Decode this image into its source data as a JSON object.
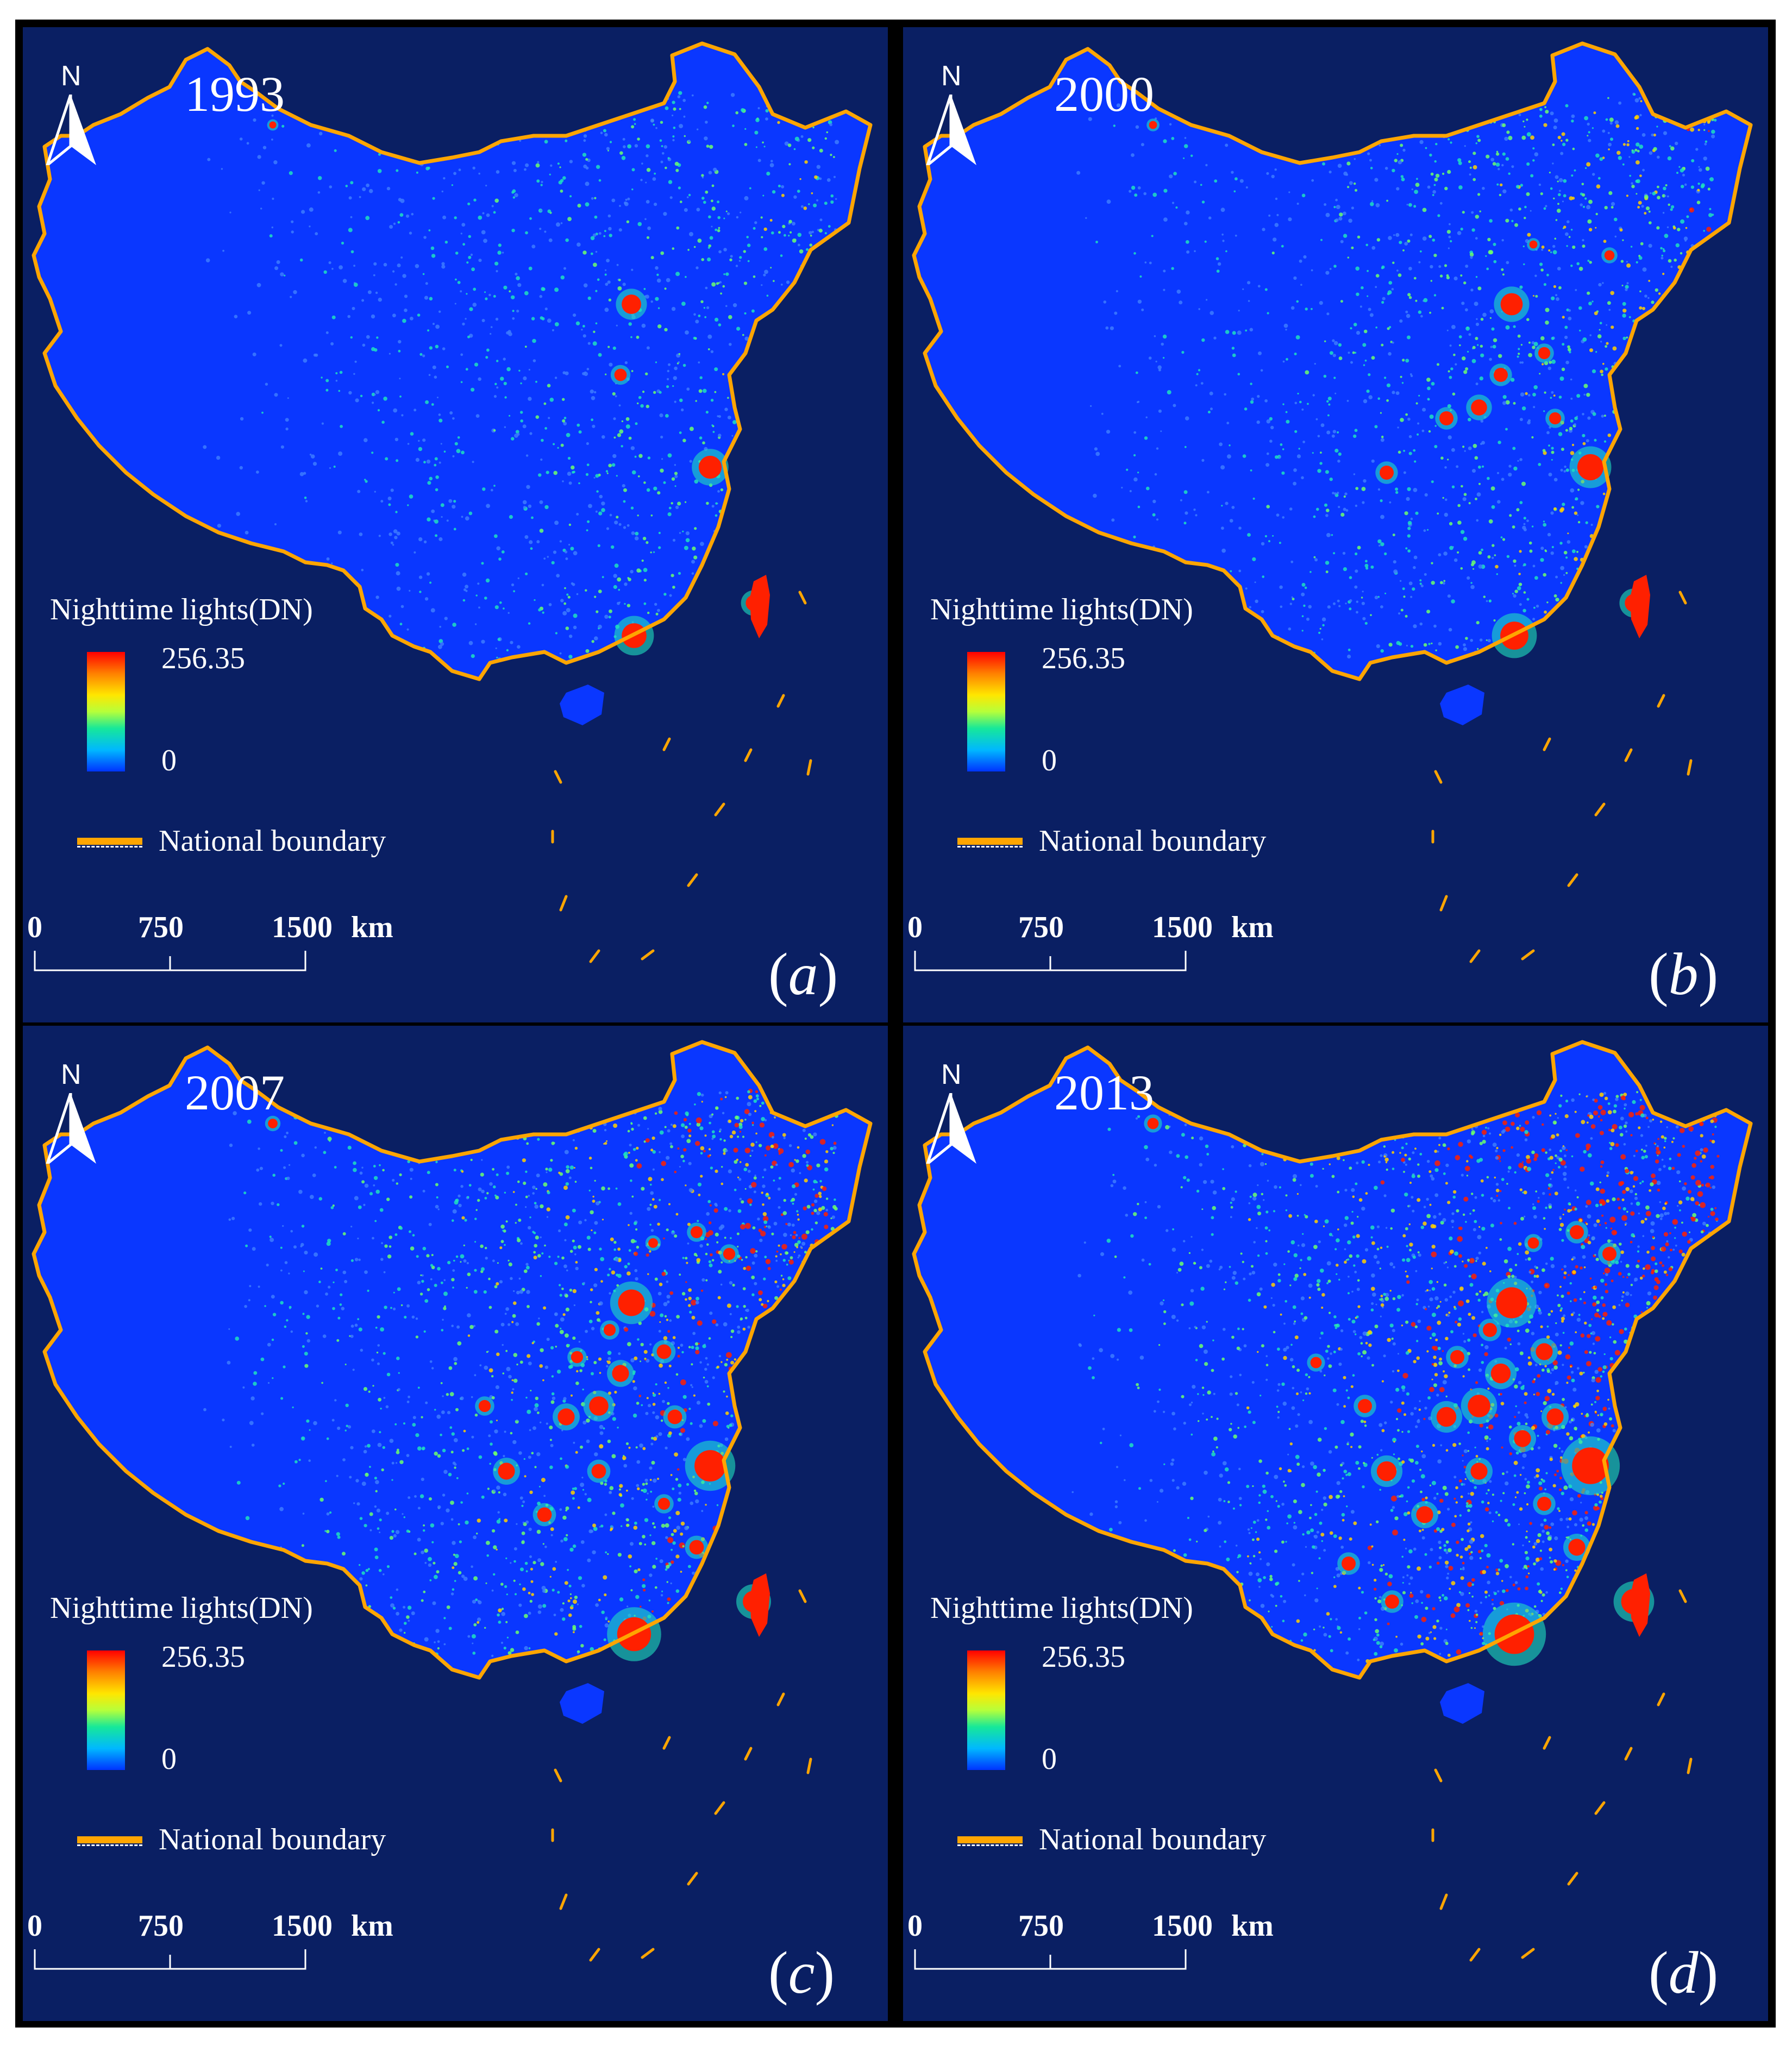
{
  "figure": {
    "panels": [
      {
        "id": "a",
        "year": "1993",
        "label_letter": "a",
        "intensity": 0.35
      },
      {
        "id": "b",
        "year": "2000",
        "label_letter": "b",
        "intensity": 0.5
      },
      {
        "id": "c",
        "year": "2007",
        "label_letter": "c",
        "intensity": 0.75
      },
      {
        "id": "d",
        "year": "2013",
        "label_letter": "d",
        "intensity": 1.0
      }
    ],
    "legend": {
      "title": "Nighttime lights(DN)",
      "max": "256.35",
      "min": "0",
      "boundary_label": "National boundary"
    },
    "scale": {
      "v0": "0",
      "v1": "750",
      "v2": "1500",
      "unit": "km"
    },
    "north": "N",
    "colors": {
      "background": "#0a1f63",
      "land": "#0a37ff",
      "boundary": "#ffa500",
      "high": "#ff2000",
      "mid": "#1fe0c0"
    }
  }
}
